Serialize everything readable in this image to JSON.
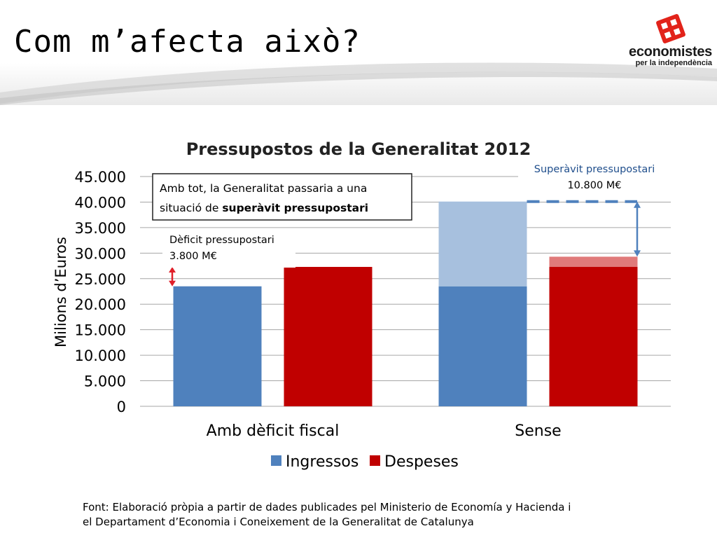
{
  "slide": {
    "title": "Com m’afecta això?",
    "source_line1": "Font: Elaboració pròpia a partir de dades publicades pel Ministerio de Economía y Hacienda i",
    "source_line2": "el Departament d’Economia i Coneixement de la Generalitat de Catalunya"
  },
  "logo": {
    "name": "economistes",
    "tagline": "per la independència",
    "icon": "economistes-logo-icon",
    "brand_color": "#e2231a"
  },
  "chart_data": {
    "type": "bar",
    "title": "Pressupostos de la Generalitat 2012",
    "xlabel": "",
    "ylabel": "Milions d’Euros",
    "ylim": [
      0,
      45000
    ],
    "yticks": [
      0,
      5000,
      10000,
      15000,
      20000,
      25000,
      30000,
      35000,
      40000,
      45000
    ],
    "ytick_labels": [
      "0",
      "5.000",
      "10.000",
      "15.000",
      "20.000",
      "25.000",
      "30.000",
      "35.000",
      "40.000",
      "45.000"
    ],
    "grid": true,
    "legend_position": "bottom",
    "categories": [
      "Amb dèficit fiscal",
      "Sense"
    ],
    "series": [
      {
        "name": "Ingressos",
        "color": "#4f81bd",
        "values": [
          23500,
          23500
        ]
      },
      {
        "name": "Despeses",
        "color": "#c00000",
        "values": [
          27300,
          27300
        ]
      }
    ],
    "stacked_extras": [
      {
        "category": "Sense",
        "series": "Ingressos",
        "from": 23500,
        "to": 40100,
        "color": "#a7c0de"
      },
      {
        "category": "Sense",
        "series": "Despeses",
        "from": 27300,
        "to": 29300,
        "color": "#e07a7a"
      }
    ],
    "annotations": {
      "callout_line1": "Amb tot, la Generalitat passaria a una",
      "callout_line2_prefix": "situació de ",
      "callout_line2_bold": "superàvit pressupostari",
      "deficit_label_line1": "Dèficit pressupostari",
      "deficit_label_line2": "3.800 M€",
      "deficit_range": [
        23500,
        27300
      ],
      "surplus_label_line1": "Superàvit pressupostari",
      "surplus_label_line2": "10.800 M€",
      "surplus_range": [
        29300,
        40100
      ]
    }
  }
}
